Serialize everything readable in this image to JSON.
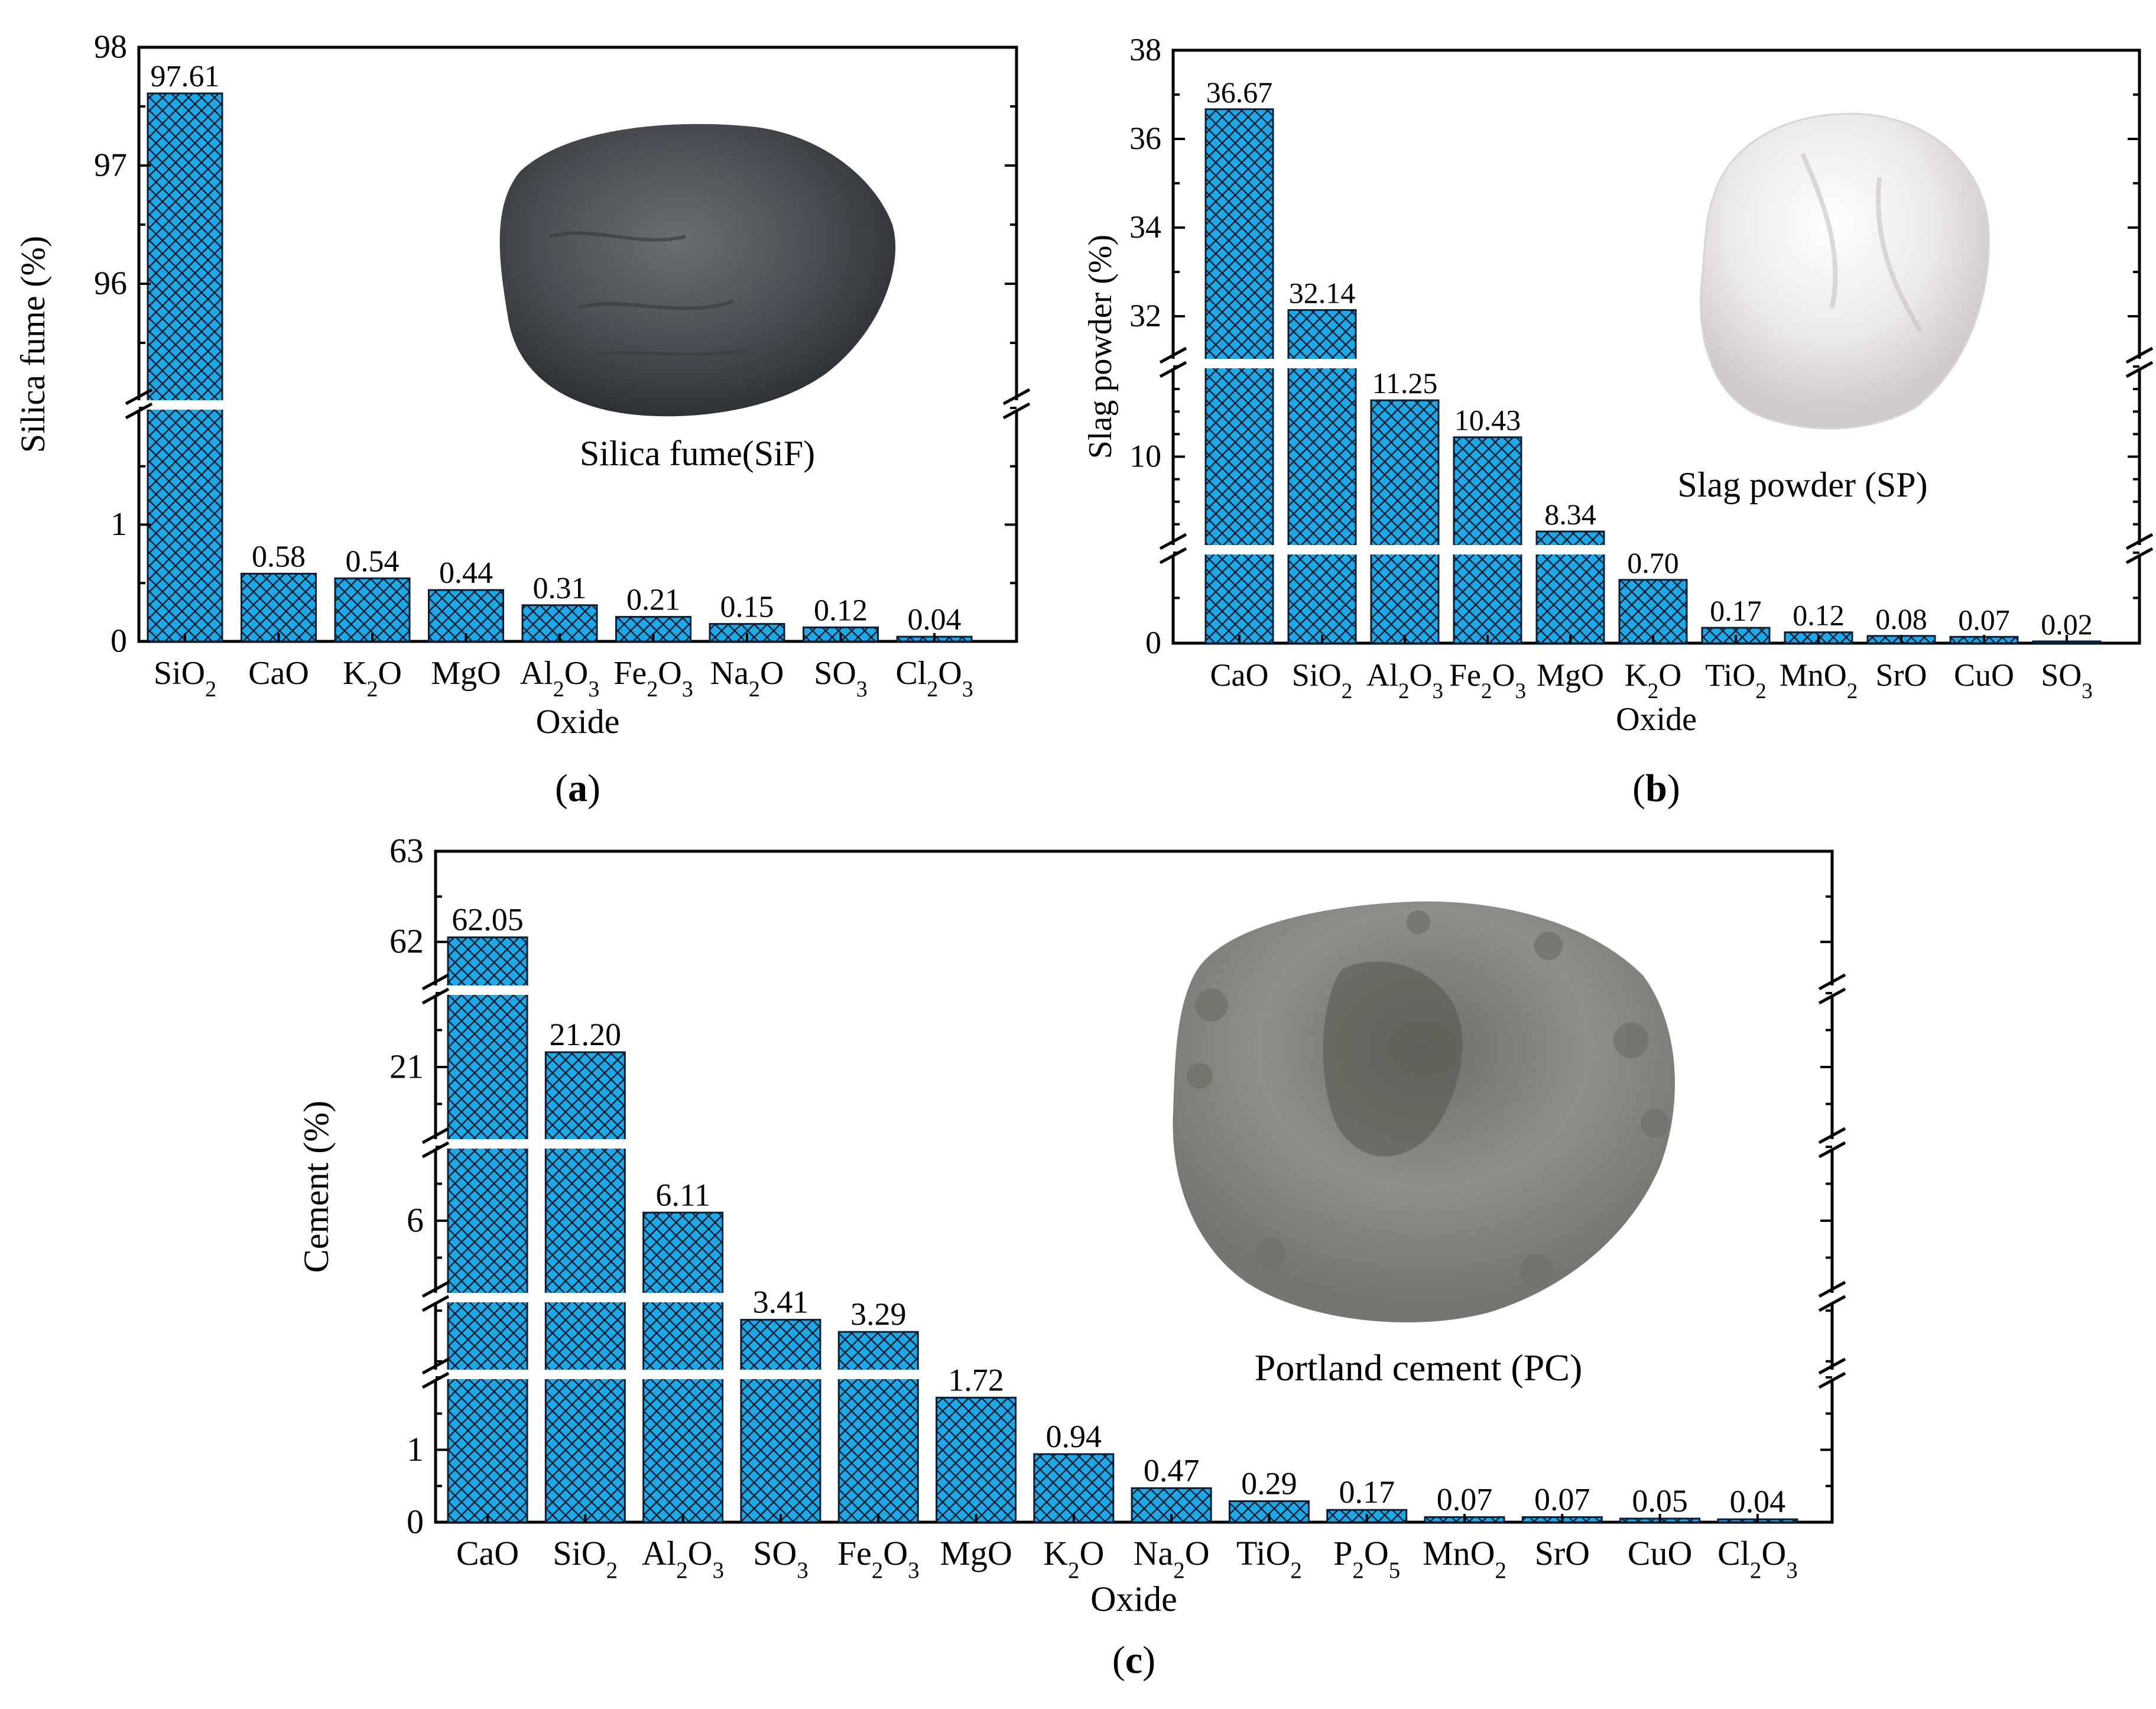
{
  "chart_data": [
    {
      "id": "a",
      "type": "bar",
      "panel_label": "a",
      "ylabel": "Silica fume (%)",
      "xlabel": "Oxide",
      "categories": [
        [
          "SiO",
          "2",
          ""
        ],
        [
          "CaO"
        ],
        [
          "K",
          "2",
          "O"
        ],
        [
          "MgO"
        ],
        [
          "Al",
          "2",
          "O",
          "3",
          ""
        ],
        [
          "Fe",
          "2",
          "O",
          "3",
          ""
        ],
        [
          "Na",
          "2",
          "O"
        ],
        [
          "SO",
          "3",
          ""
        ],
        [
          "Cl",
          "2",
          "O",
          "3",
          ""
        ]
      ],
      "values": [
        97.61,
        0.58,
        0.54,
        0.44,
        0.31,
        0.21,
        0.15,
        0.12,
        0.04
      ],
      "value_labels": [
        "97.61",
        "0.58",
        "0.54",
        "0.44",
        "0.31",
        "0.21",
        "0.15",
        "0.12",
        "0.04"
      ],
      "axis_segments": [
        {
          "range": [
            0,
            2
          ],
          "ticks": [
            "0",
            "1"
          ]
        },
        {
          "range": [
            95,
            98
          ],
          "ticks": [
            "96",
            "97",
            "98"
          ]
        }
      ],
      "legend": "top-right",
      "inset": {
        "caption": "Silica fume(SiF)",
        "powder": "dark gray silica fume"
      }
    },
    {
      "id": "b",
      "type": "bar",
      "panel_label": "b",
      "ylabel": "Slag powder (%)",
      "xlabel": "Oxide",
      "categories": [
        [
          "CaO"
        ],
        [
          "SiO",
          "2",
          ""
        ],
        [
          "Al",
          "2",
          "O",
          "3",
          ""
        ],
        [
          "Fe",
          "2",
          "O",
          "3",
          ""
        ],
        [
          "MgO"
        ],
        [
          "K",
          "2",
          "O"
        ],
        [
          "TiO",
          "2",
          ""
        ],
        [
          "MnO",
          "2",
          ""
        ],
        [
          "SrO"
        ],
        [
          "CuO"
        ],
        [
          "SO",
          "3",
          ""
        ]
      ],
      "values": [
        36.67,
        32.14,
        11.25,
        10.43,
        8.34,
        0.7,
        0.17,
        0.12,
        0.08,
        0.07,
        0.02
      ],
      "value_labels": [
        "36.67",
        "32.14",
        "11.25",
        "10.43",
        "8.34",
        "0.70",
        "0.17",
        "0.12",
        "0.08",
        "0.07",
        "0.02"
      ],
      "axis_segments": [
        {
          "range": [
            0,
            1
          ],
          "ticks": [
            "0"
          ]
        },
        {
          "range": [
            8,
            12
          ],
          "ticks": [
            "10"
          ]
        },
        {
          "range": [
            31,
            38
          ],
          "ticks": [
            "32",
            "34",
            "36",
            "38"
          ]
        }
      ],
      "legend": "top-right",
      "inset": {
        "caption": "Slag powder (SP)",
        "powder": "off-white slag powder"
      }
    },
    {
      "id": "c",
      "type": "bar",
      "panel_label": "c",
      "ylabel": "Cement (%)",
      "xlabel": "Oxide",
      "categories": [
        [
          "CaO"
        ],
        [
          "SiO",
          "2",
          ""
        ],
        [
          "Al",
          "2",
          "O",
          "3",
          ""
        ],
        [
          "SO",
          "3",
          ""
        ],
        [
          "Fe",
          "2",
          "O",
          "3",
          ""
        ],
        [
          "MgO"
        ],
        [
          "K",
          "2",
          "O"
        ],
        [
          "Na",
          "2",
          "O"
        ],
        [
          "TiO",
          "2",
          ""
        ],
        [
          "P",
          "2",
          "O",
          "5",
          ""
        ],
        [
          "MnO",
          "2",
          ""
        ],
        [
          "SrO"
        ],
        [
          "CuO"
        ],
        [
          "Cl",
          "2",
          "O",
          "3",
          ""
        ]
      ],
      "values": [
        62.05,
        21.2,
        6.11,
        3.41,
        3.29,
        1.72,
        0.94,
        0.47,
        0.29,
        0.17,
        0.07,
        0.07,
        0.05,
        0.04
      ],
      "value_labels": [
        "62.05",
        "21.20",
        "6.11",
        "3.41",
        "3.29",
        "1.72",
        "0.94",
        "0.47",
        "0.29",
        "0.17",
        "0.07",
        "0.07",
        "0.05",
        "0.04"
      ],
      "axis_segments": [
        {
          "range": [
            0,
            2
          ],
          "ticks": [
            "0",
            "1"
          ]
        },
        {
          "range": [
            2.9,
            3.6
          ],
          "ticks": []
        },
        {
          "range": [
            5,
            7
          ],
          "ticks": [
            "6"
          ]
        },
        {
          "range": [
            20,
            22
          ],
          "ticks": [
            "21"
          ]
        },
        {
          "range": [
            61.5,
            63
          ],
          "ticks": [
            "62",
            "63"
          ]
        }
      ],
      "legend": "top-right",
      "inset": {
        "caption": "Portland cement (PC)",
        "powder": "gray portland cement"
      }
    }
  ],
  "colors": {
    "bar_fill": "#1FA8E6",
    "bar_hatch": "#0B1E33",
    "axis": "#000000",
    "break_gap": "#ffffff"
  }
}
